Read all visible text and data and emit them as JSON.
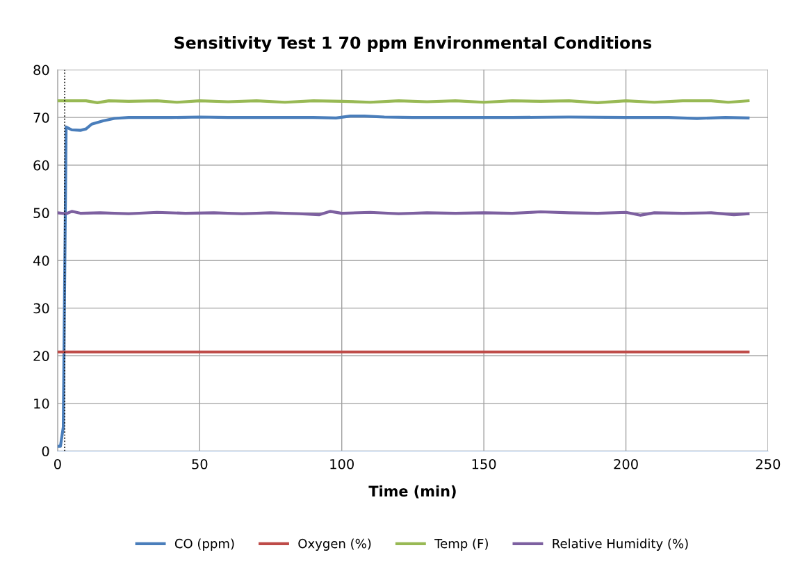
{
  "chart_data": {
    "type": "line",
    "title": "Sensitivity Test 1 70 ppm Environmental Conditions",
    "xlabel": "Time (min)",
    "xlim": [
      0,
      250
    ],
    "xticks": [
      0,
      50,
      100,
      150,
      200,
      250
    ],
    "ylim": [
      0,
      80
    ],
    "yticks": [
      0,
      10,
      20,
      30,
      40,
      50,
      60,
      70,
      80
    ],
    "grid": true,
    "legend": "bottom",
    "marker": "none",
    "line_style": "solid",
    "ref_lines": [
      {
        "axis": "x",
        "value": 2.5,
        "label": null,
        "color": "#000000",
        "line_style": "dotted"
      }
    ],
    "series": [
      {
        "name": "CO (ppm)",
        "color": "#4a7ebb",
        "x": [
          0,
          1,
          2,
          3,
          5,
          8,
          10,
          12,
          16,
          20,
          25,
          30,
          40,
          50,
          60,
          70,
          80,
          90,
          98,
          103,
          108,
          115,
          125,
          140,
          160,
          180,
          200,
          215,
          225,
          235,
          243
        ],
        "values": [
          1,
          1,
          5,
          68,
          67.4,
          67.3,
          67.6,
          68.6,
          69.3,
          69.8,
          70,
          70,
          70,
          70.1,
          70,
          70,
          70,
          70,
          69.9,
          70.3,
          70.3,
          70.1,
          70,
          70,
          70,
          70.1,
          70,
          70,
          69.8,
          70,
          69.9
        ]
      },
      {
        "name": "Oxygen (%)",
        "color": "#be4b48",
        "x": [
          0,
          243
        ],
        "values": [
          20.8,
          20.8
        ]
      },
      {
        "name": "Temp (F)",
        "color": "#98b954",
        "x": [
          0,
          10,
          14,
          18,
          25,
          35,
          42,
          50,
          60,
          70,
          80,
          90,
          100,
          110,
          120,
          130,
          140,
          150,
          160,
          170,
          180,
          190,
          200,
          210,
          220,
          230,
          236,
          243
        ],
        "values": [
          73.5,
          73.5,
          73.1,
          73.5,
          73.4,
          73.5,
          73.2,
          73.5,
          73.3,
          73.5,
          73.2,
          73.5,
          73.4,
          73.2,
          73.5,
          73.3,
          73.5,
          73.2,
          73.5,
          73.4,
          73.5,
          73.1,
          73.5,
          73.2,
          73.5,
          73.5,
          73.2,
          73.5
        ]
      },
      {
        "name": "Relative Humidity (%)",
        "color": "#7d60a0",
        "x": [
          0,
          3,
          5,
          8,
          15,
          25,
          35,
          45,
          55,
          65,
          75,
          85,
          92,
          96,
          100,
          110,
          120,
          130,
          140,
          150,
          160,
          170,
          180,
          190,
          200,
          205,
          210,
          220,
          230,
          238,
          243
        ],
        "values": [
          50,
          49.8,
          50.3,
          49.9,
          50,
          49.8,
          50.1,
          49.9,
          50,
          49.8,
          50,
          49.8,
          49.6,
          50.3,
          49.9,
          50.1,
          49.8,
          50,
          49.9,
          50,
          49.9,
          50.2,
          50,
          49.9,
          50.1,
          49.5,
          50,
          49.9,
          50,
          49.6,
          49.8
        ]
      }
    ]
  }
}
